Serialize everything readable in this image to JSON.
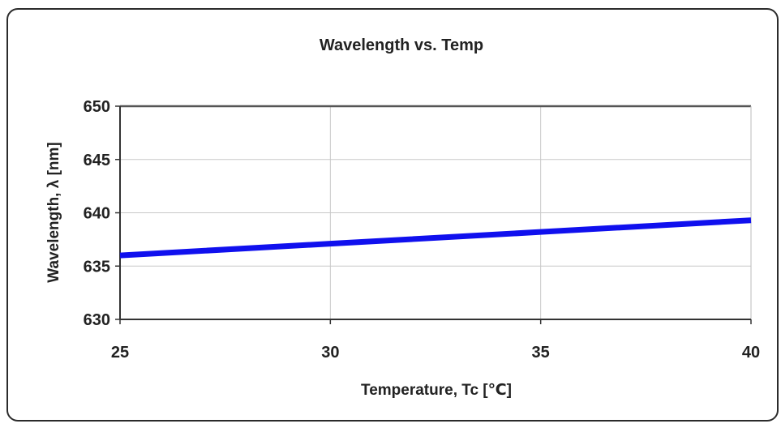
{
  "chart_data": {
    "type": "line",
    "title": "Wavelength vs. Temp",
    "xlabel": "Temperature, Tc [℃]",
    "ylabel": "Wavelength, λ [nm]",
    "xlim": [
      25,
      40
    ],
    "ylim": [
      630,
      650
    ],
    "xticks": [
      25,
      30,
      35,
      40
    ],
    "yticks": [
      630,
      635,
      640,
      645,
      650
    ],
    "grid": true,
    "series": [
      {
        "x": [
          25,
          30,
          35,
          40
        ],
        "y": [
          636.0,
          637.1,
          638.2,
          639.3
        ],
        "color": "#1010ee"
      }
    ]
  }
}
